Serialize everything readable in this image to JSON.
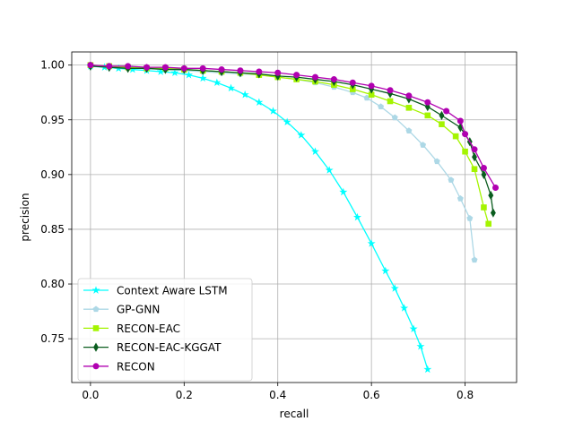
{
  "chart_data": {
    "type": "line",
    "xlabel": "recall",
    "ylabel": "precision",
    "xlim": [
      -0.04,
      0.91
    ],
    "ylim": [
      0.71,
      1.012
    ],
    "xticks": [
      0.0,
      0.2,
      0.4,
      0.6,
      0.8
    ],
    "xtick_labels": [
      "0.0",
      "0.2",
      "0.4",
      "0.6",
      "0.8"
    ],
    "yticks": [
      0.75,
      0.8,
      0.85,
      0.9,
      0.95,
      1.0
    ],
    "ytick_labels": [
      "0.75",
      "0.80",
      "0.85",
      "0.90",
      "0.95",
      "1.00"
    ],
    "grid": true,
    "legend_position": "lower-left",
    "series": [
      {
        "name": "Context Aware LSTM",
        "color": "#00ffff",
        "marker": "star",
        "x": [
          0.0,
          0.03,
          0.06,
          0.09,
          0.12,
          0.15,
          0.18,
          0.21,
          0.24,
          0.27,
          0.3,
          0.33,
          0.36,
          0.39,
          0.42,
          0.45,
          0.48,
          0.51,
          0.54,
          0.57,
          0.6,
          0.63,
          0.65,
          0.67,
          0.69,
          0.705,
          0.72
        ],
        "y": [
          0.999,
          0.998,
          0.997,
          0.996,
          0.995,
          0.994,
          0.993,
          0.991,
          0.988,
          0.984,
          0.979,
          0.973,
          0.966,
          0.958,
          0.948,
          0.936,
          0.921,
          0.904,
          0.884,
          0.861,
          0.837,
          0.812,
          0.796,
          0.778,
          0.759,
          0.743,
          0.722
        ]
      },
      {
        "name": "GP-GNN",
        "color": "#add8e6",
        "marker": "pentagon",
        "x": [
          0.0,
          0.04,
          0.08,
          0.12,
          0.16,
          0.2,
          0.24,
          0.28,
          0.32,
          0.36,
          0.4,
          0.44,
          0.48,
          0.52,
          0.56,
          0.59,
          0.62,
          0.65,
          0.68,
          0.71,
          0.74,
          0.77,
          0.79,
          0.81,
          0.82
        ],
        "y": [
          1.0,
          0.999,
          0.998,
          0.997,
          0.996,
          0.995,
          0.994,
          0.993,
          0.992,
          0.991,
          0.989,
          0.987,
          0.984,
          0.98,
          0.975,
          0.97,
          0.962,
          0.952,
          0.94,
          0.927,
          0.912,
          0.895,
          0.878,
          0.86,
          0.822
        ]
      },
      {
        "name": "RECON-EAC",
        "color": "#a4f400",
        "marker": "square",
        "x": [
          0.0,
          0.04,
          0.08,
          0.12,
          0.16,
          0.2,
          0.24,
          0.28,
          0.32,
          0.36,
          0.4,
          0.44,
          0.48,
          0.52,
          0.56,
          0.6,
          0.64,
          0.68,
          0.72,
          0.75,
          0.78,
          0.8,
          0.82,
          0.84,
          0.85
        ],
        "y": [
          1.0,
          0.999,
          0.998,
          0.997,
          0.997,
          0.996,
          0.995,
          0.994,
          0.993,
          0.991,
          0.989,
          0.987,
          0.985,
          0.982,
          0.978,
          0.973,
          0.967,
          0.961,
          0.954,
          0.946,
          0.935,
          0.921,
          0.905,
          0.87,
          0.855
        ]
      },
      {
        "name": "RECON-EAC-KGGAT",
        "color": "#0a5c1e",
        "marker": "thin_diamond",
        "x": [
          0.0,
          0.04,
          0.08,
          0.12,
          0.16,
          0.2,
          0.24,
          0.28,
          0.32,
          0.36,
          0.4,
          0.44,
          0.48,
          0.52,
          0.56,
          0.6,
          0.64,
          0.68,
          0.72,
          0.75,
          0.79,
          0.81,
          0.82,
          0.84,
          0.855,
          0.86
        ],
        "y": [
          0.999,
          0.998,
          0.997,
          0.997,
          0.996,
          0.996,
          0.995,
          0.994,
          0.993,
          0.992,
          0.99,
          0.989,
          0.987,
          0.985,
          0.982,
          0.978,
          0.974,
          0.969,
          0.962,
          0.954,
          0.943,
          0.93,
          0.916,
          0.9,
          0.881,
          0.865
        ]
      },
      {
        "name": "RECON",
        "color": "#b000b0",
        "marker": "circle",
        "x": [
          0.0,
          0.04,
          0.08,
          0.12,
          0.16,
          0.2,
          0.24,
          0.28,
          0.32,
          0.36,
          0.4,
          0.44,
          0.48,
          0.52,
          0.56,
          0.6,
          0.64,
          0.68,
          0.72,
          0.76,
          0.79,
          0.8,
          0.82,
          0.84,
          0.865
        ],
        "y": [
          1.0,
          0.999,
          0.999,
          0.998,
          0.998,
          0.997,
          0.997,
          0.996,
          0.995,
          0.994,
          0.993,
          0.991,
          0.989,
          0.987,
          0.984,
          0.981,
          0.977,
          0.972,
          0.966,
          0.958,
          0.949,
          0.937,
          0.923,
          0.906,
          0.888
        ]
      }
    ]
  }
}
